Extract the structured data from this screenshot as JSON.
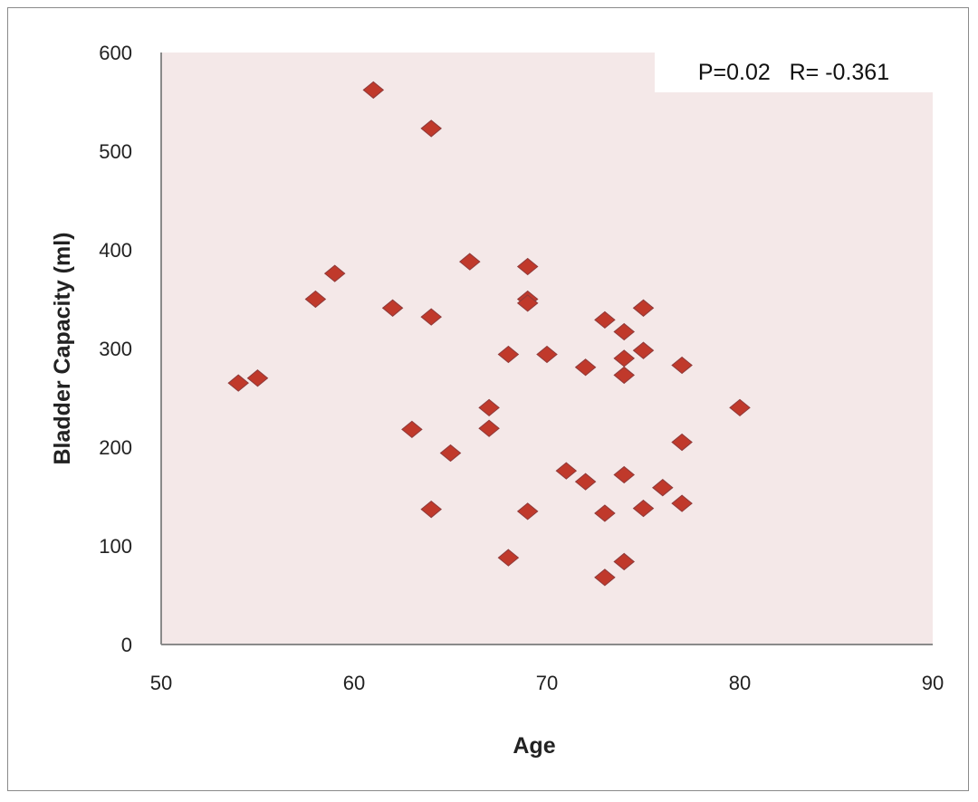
{
  "chart_data": {
    "type": "scatter",
    "title": "",
    "xlabel": "Age",
    "ylabel": "Bladder Capacity (ml)",
    "xlim": [
      50,
      90
    ],
    "ylim": [
      0,
      600
    ],
    "xticks": [
      50,
      60,
      70,
      80,
      90
    ],
    "yticks": [
      0,
      100,
      200,
      300,
      400,
      500,
      600
    ],
    "grid": false,
    "annotation": "P=0.02   R= -0.361",
    "marker_color": "#c0392b",
    "plot_background": "#f4e8e8",
    "points": [
      [
        54,
        265
      ],
      [
        55,
        270
      ],
      [
        58,
        350
      ],
      [
        59,
        376
      ],
      [
        61,
        562
      ],
      [
        62,
        341
      ],
      [
        63,
        218
      ],
      [
        64,
        523
      ],
      [
        64,
        332
      ],
      [
        64,
        137
      ],
      [
        65,
        194
      ],
      [
        66,
        388
      ],
      [
        67,
        240
      ],
      [
        67,
        219
      ],
      [
        68,
        294
      ],
      [
        68,
        88
      ],
      [
        69,
        383
      ],
      [
        69,
        350
      ],
      [
        69,
        346
      ],
      [
        69,
        135
      ],
      [
        70,
        294
      ],
      [
        71,
        176
      ],
      [
        72,
        165
      ],
      [
        72,
        281
      ],
      [
        73,
        329
      ],
      [
        73,
        133
      ],
      [
        73,
        68
      ],
      [
        74,
        317
      ],
      [
        74,
        290
      ],
      [
        74,
        273
      ],
      [
        74,
        172
      ],
      [
        74,
        84
      ],
      [
        75,
        341
      ],
      [
        75,
        298
      ],
      [
        75,
        138
      ],
      [
        76,
        159
      ],
      [
        77,
        283
      ],
      [
        77,
        205
      ],
      [
        77,
        143
      ],
      [
        80,
        240
      ]
    ]
  }
}
